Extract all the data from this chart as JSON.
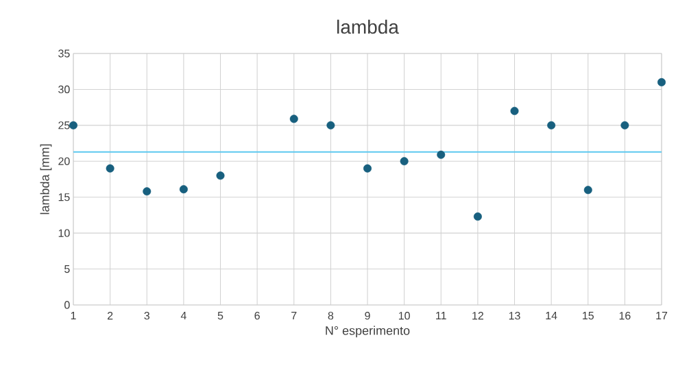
{
  "chart_data": {
    "type": "scatter",
    "title": "lambda",
    "xlabel": "N° esperimento",
    "ylabel": "lambda [mm]",
    "x": [
      1,
      2,
      3,
      4,
      5,
      7,
      8,
      9,
      10,
      11,
      12,
      13,
      14,
      15,
      16,
      17
    ],
    "series": [
      {
        "color": "#18607f",
        "values": [
          25,
          19,
          15.8,
          16.1,
          18,
          25.9,
          25,
          19,
          20,
          20.9,
          12.3,
          27,
          25,
          16,
          25,
          31
        ]
      }
    ],
    "xlim": [
      1,
      17
    ],
    "xticks": [
      1,
      2,
      3,
      4,
      5,
      6,
      7,
      8,
      9,
      10,
      11,
      12,
      13,
      14,
      15,
      16,
      17
    ],
    "ylim": [
      0,
      35
    ],
    "yticks": [
      0,
      5,
      10,
      15,
      20,
      25,
      30,
      35
    ],
    "ref_lines": [
      {
        "axis": "y",
        "value": 21.3,
        "color": "#5cc8ef",
        "line_style": "solid"
      }
    ],
    "grid": true,
    "marker": "circle"
  }
}
